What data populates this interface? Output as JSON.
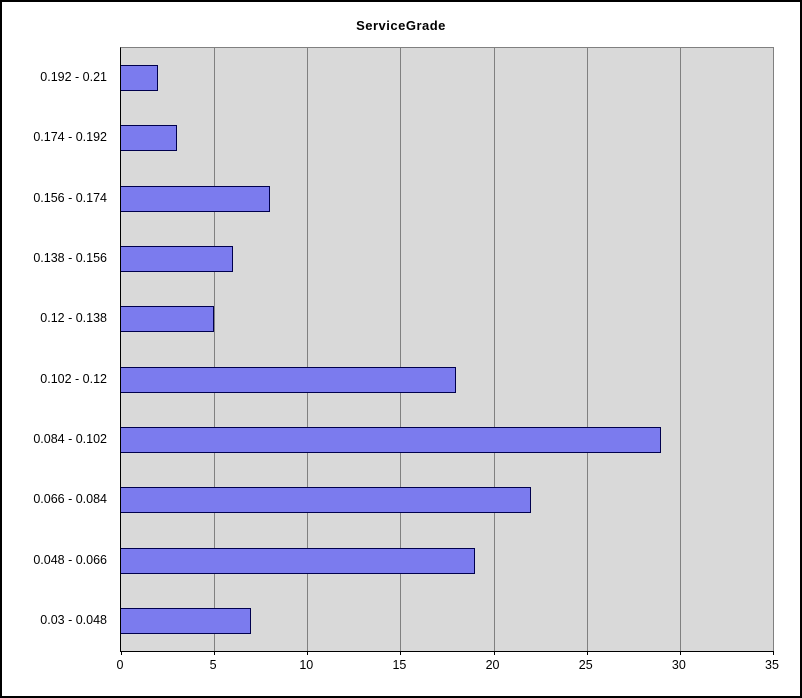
{
  "chart_data": {
    "type": "bar",
    "orientation": "horizontal",
    "title": "ServiceGrade",
    "categories": [
      "0.192 - 0.21",
      "0.174 - 0.192",
      "0.156 - 0.174",
      "0.138 - 0.156",
      "0.12 - 0.138",
      "0.102 - 0.12",
      "0.084 - 0.102",
      "0.066 - 0.084",
      "0.048 - 0.066",
      "0.03 - 0.048"
    ],
    "values": [
      2,
      3,
      8,
      6,
      5,
      18,
      29,
      22,
      19,
      7
    ],
    "xlabel": "",
    "ylabel": "",
    "xlim": [
      0,
      35
    ],
    "xticks": [
      0,
      5,
      10,
      15,
      20,
      25,
      30,
      35
    ],
    "grid": "vertical",
    "legend": "none",
    "colors": {
      "bar_fill": "#7b7bee",
      "bar_border": "#00004d",
      "plot_bg": "#d9d9d9",
      "gridline": "#808080",
      "frame_border": "#000000"
    }
  }
}
